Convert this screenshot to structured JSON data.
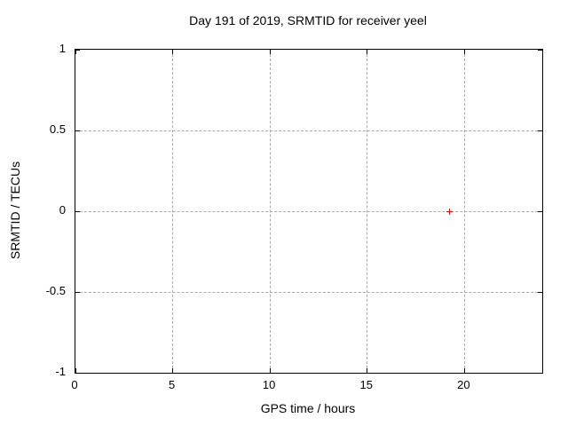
{
  "chart_data": {
    "type": "scatter",
    "title": "Day 191 of 2019, SRMTID for receiver yeel",
    "xlabel": "GPS time / hours",
    "ylabel": "SRMTID / TECUs",
    "xlim": [
      0,
      24
    ],
    "ylim": [
      -1,
      1
    ],
    "xtick_values": [
      0,
      5,
      10,
      15,
      20
    ],
    "xtick_labels": [
      "0",
      "5",
      "10",
      "15",
      "20"
    ],
    "ytick_values": [
      -1,
      -0.5,
      0,
      0.5,
      1
    ],
    "ytick_labels": [
      "-1",
      "-0.5",
      "0",
      "0.5",
      "1"
    ],
    "grid": true,
    "legend_position": "none",
    "series": [
      {
        "name": "SRMTID",
        "marker": "plus",
        "color": "#ff0000",
        "points": [
          {
            "x": 19.25,
            "y": 0
          }
        ]
      }
    ]
  },
  "colors": {
    "background": "#ffffff",
    "plot_border": "#000000",
    "grid": "#a9a9a9",
    "text": "#000000",
    "marker": "#ff0000"
  }
}
